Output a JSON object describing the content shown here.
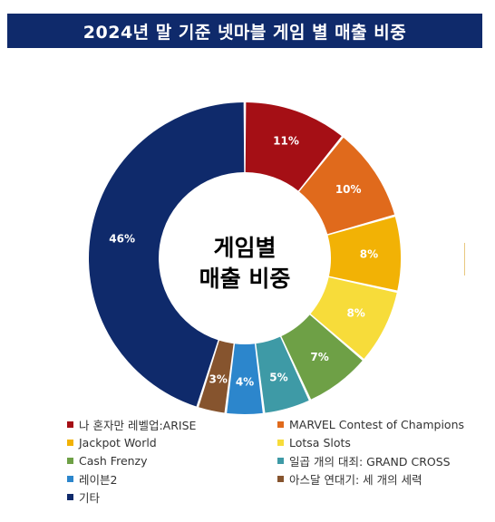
{
  "header": {
    "title": "2024년 말 기준 넷마블 게임 별 매출 비중"
  },
  "chart_data": {
    "type": "pie",
    "variant": "donut",
    "center_text": [
      "게임별",
      "매출 비중"
    ],
    "legend_position": "bottom",
    "categories": [
      "나 혼자만 레벨업:ARISE",
      "MARVEL Contest of Champions",
      "Jackpot World",
      "Lotsa Slots",
      "Cash Frenzy",
      "일곱 개의 대죄: GRAND CROSS",
      "레이븐2",
      "아스달 연대기: 세 개의 세력",
      "기타"
    ],
    "values": [
      11,
      10,
      8,
      8,
      7,
      5,
      4,
      3,
      46
    ],
    "labels": [
      "11%",
      "10%",
      "8%",
      "8%",
      "7%",
      "5%",
      "4%",
      "3%",
      "46%"
    ],
    "colors": [
      "#a50f15",
      "#e06a1c",
      "#f2b205",
      "#f7dc3a",
      "#6ea046",
      "#3e9aa6",
      "#2c86cc",
      "#86542e",
      "#0f2a6b"
    ]
  }
}
